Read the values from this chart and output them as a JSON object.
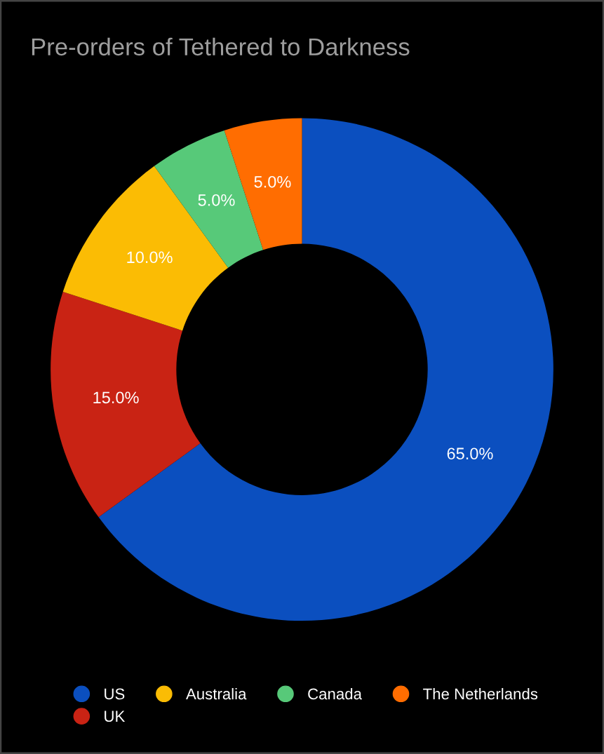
{
  "chart_data": {
    "type": "donut",
    "title": "Pre-orders of Tethered to Darkness",
    "categories": [
      "US",
      "UK",
      "Australia",
      "Canada",
      "The Netherlands"
    ],
    "values": [
      65,
      15,
      10,
      5,
      5
    ],
    "colors": [
      "#0b4fbf",
      "#c92314",
      "#fbbc04",
      "#57c979",
      "#ff6d01"
    ],
    "value_labels": [
      "65.0%",
      "15.0%",
      "10.0%",
      "5.0%",
      "5.0%"
    ],
    "legend": "bottom"
  }
}
